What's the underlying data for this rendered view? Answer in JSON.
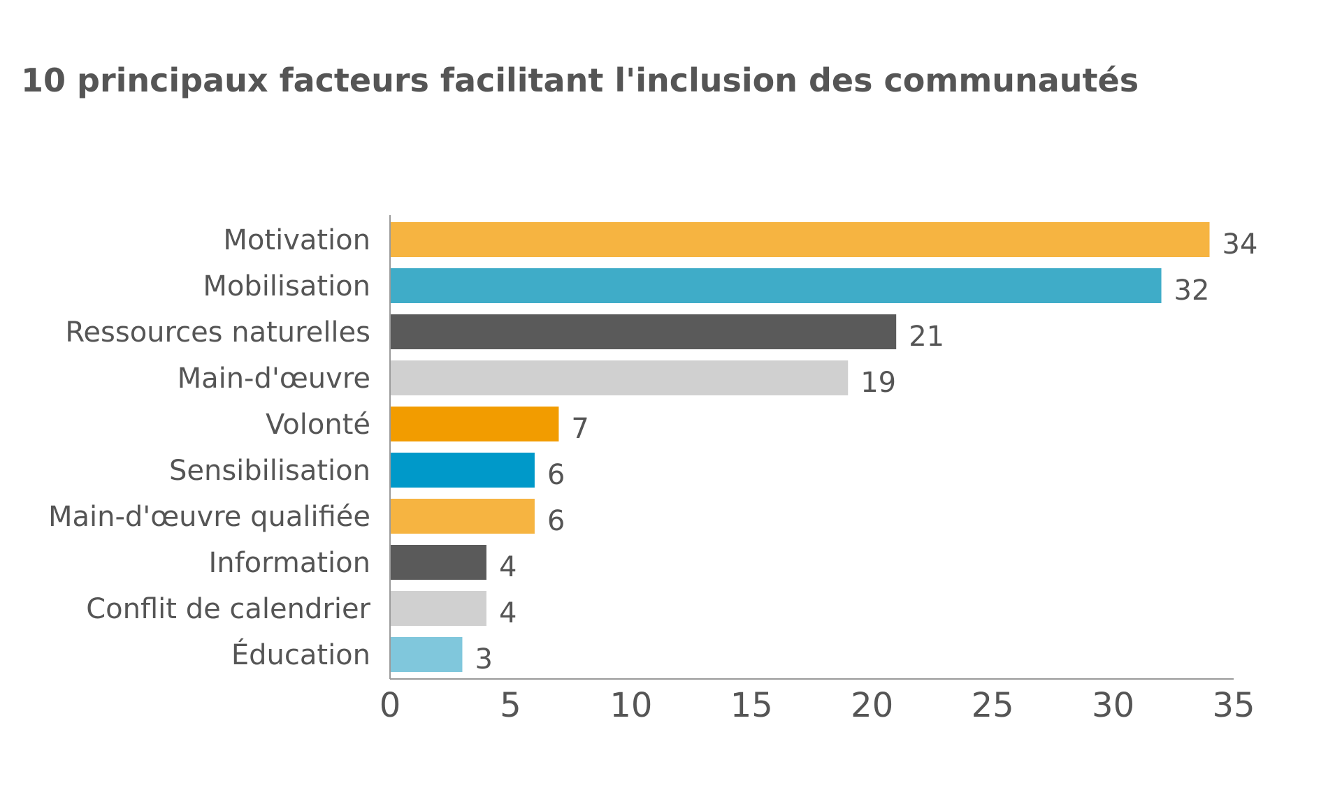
{
  "chart_data": {
    "type": "bar",
    "orientation": "horizontal",
    "title": "10 principaux facteurs facilitant l'inclusion des communautés",
    "xlabel": "",
    "ylabel": "",
    "xlim": [
      0,
      35
    ],
    "x_ticks": [
      "0",
      "5",
      "10",
      "15",
      "20",
      "25",
      "30",
      "35"
    ],
    "grid": false,
    "legend": "none",
    "categories": [
      "Motivation",
      "Mobilisation",
      "Ressources naturelles",
      "Main-d'œuvre",
      "Volonté",
      "Sensibilisation",
      "Main-d'œuvre qualifiée",
      "Information",
      "Conflit de calendrier",
      "Éducation"
    ],
    "values": [
      34,
      32,
      21,
      19,
      7,
      6,
      6,
      4,
      4,
      3
    ],
    "value_labels": [
      "34",
      "32",
      "21",
      "19",
      "7",
      "6",
      "6",
      "4",
      "4",
      "3"
    ],
    "colors": [
      "#F6B441",
      "#3FACC8",
      "#5A5A5A",
      "#D0D0D0",
      "#F29C00",
      "#0099C9",
      "#F6B441",
      "#5A5A5A",
      "#D0D0D0",
      "#80C7DC"
    ],
    "axis_color": "#9A9A9A"
  }
}
